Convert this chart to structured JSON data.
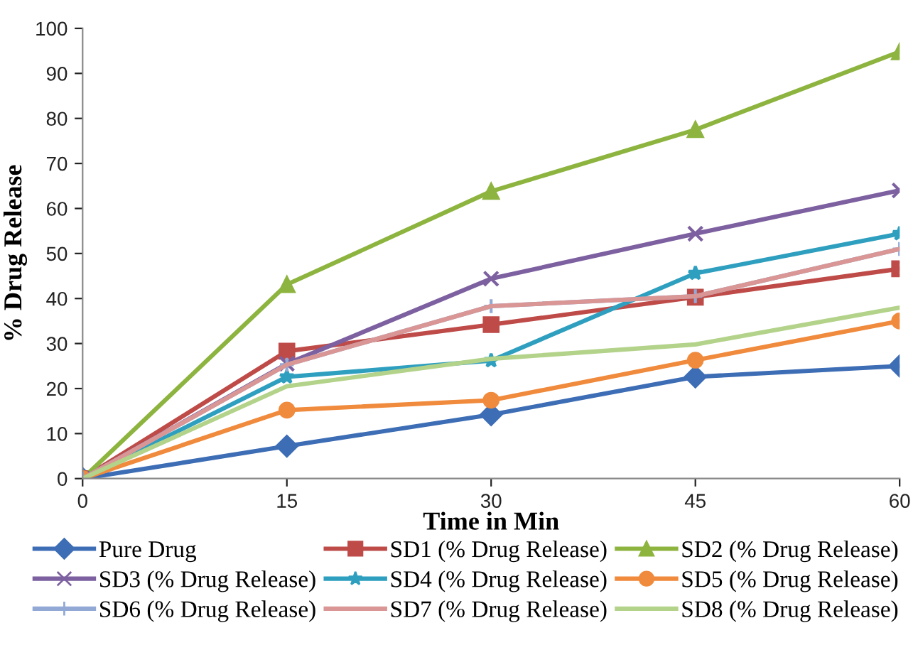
{
  "chart_data": {
    "type": "line",
    "xlabel": "Time in Min",
    "ylabel": "% Drug Release",
    "x": [
      0,
      15,
      30,
      45,
      60
    ],
    "xlim": [
      0,
      60
    ],
    "xticks": [
      0,
      15,
      30,
      45,
      60
    ],
    "ylim": [
      0,
      100
    ],
    "yticks": [
      0,
      10,
      20,
      30,
      40,
      50,
      60,
      70,
      80,
      90,
      100
    ],
    "grid": false,
    "legend": "bottom",
    "series": [
      {
        "name": "Pure Drug",
        "color": "#3d6db5",
        "marker": "diamond",
        "values": [
          0,
          7.2,
          14.2,
          22.6,
          25.0
        ]
      },
      {
        "name": "SD1 (% Drug Release)",
        "color": "#be4b48",
        "marker": "square",
        "values": [
          0,
          28.3,
          34.2,
          40.3,
          46.6
        ]
      },
      {
        "name": "SD2 (% Drug Release)",
        "color": "#8db43f",
        "marker": "triangle",
        "values": [
          0,
          43.1,
          63.8,
          77.5,
          94.8
        ]
      },
      {
        "name": "SD3 (% Drug Release)",
        "color": "#7d60a0",
        "marker": "cross",
        "values": [
          0,
          25.5,
          44.4,
          54.4,
          64.0
        ]
      },
      {
        "name": "SD4 (% Drug Release)",
        "color": "#2f9fbf",
        "marker": "star",
        "values": [
          0,
          22.6,
          26.2,
          45.6,
          54.4
        ]
      },
      {
        "name": "SD5 (% Drug Release)",
        "color": "#f08a3c",
        "marker": "circle",
        "values": [
          0,
          15.2,
          17.4,
          26.3,
          35.0
        ]
      },
      {
        "name": "SD6 (% Drug Release)",
        "color": "#92a9d6",
        "marker": "plus",
        "values": [
          0,
          25.3,
          38.3,
          40.5,
          51.0
        ]
      },
      {
        "name": "SD7 (% Drug Release)",
        "color": "#d99694",
        "marker": "none",
        "values": [
          0,
          25.3,
          38.3,
          40.5,
          51.0
        ]
      },
      {
        "name": "SD8 (% Drug Release)",
        "color": "#b3d38a",
        "marker": "none",
        "values": [
          0,
          20.5,
          26.6,
          29.8,
          38.0
        ]
      }
    ]
  }
}
